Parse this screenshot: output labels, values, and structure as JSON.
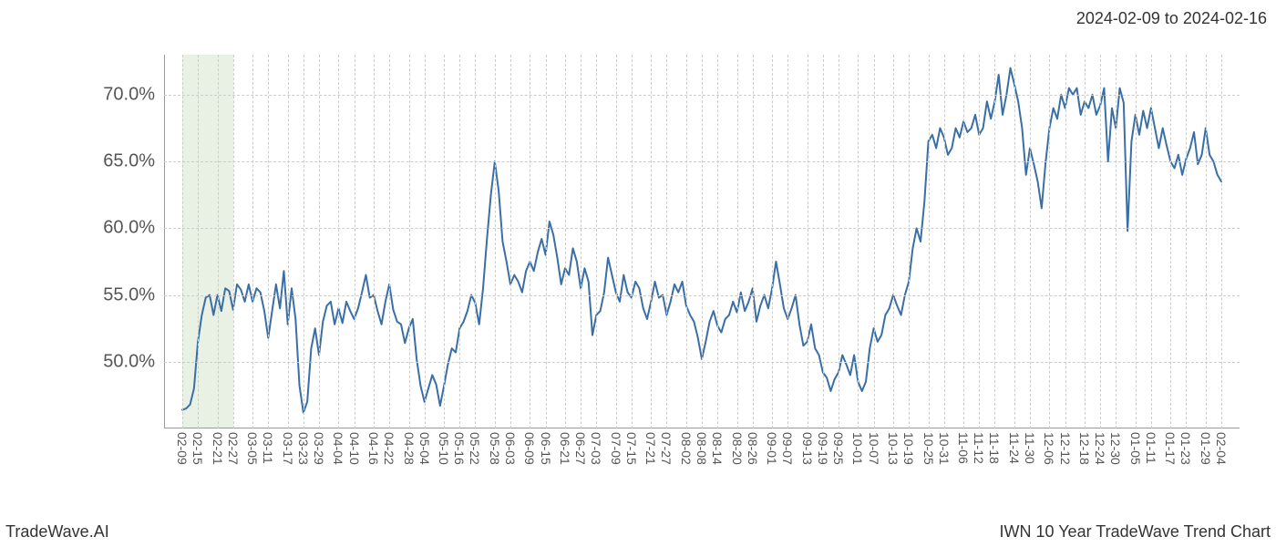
{
  "header": {
    "date_range": "2024-02-09 to 2024-02-16"
  },
  "footer": {
    "left": "TradeWave.AI",
    "right": "IWN 10 Year TradeWave Trend Chart"
  },
  "chart": {
    "type": "line",
    "line_color": "#3a6fa6",
    "line_width": 2,
    "background_color": "#ffffff",
    "grid_color": "#cccccc",
    "axis_color": "#999999",
    "text_color": "#555555",
    "tick_fontsize": 14,
    "ylabel_fontsize": 20,
    "shade_region": {
      "start_index": 0,
      "end_index": 3,
      "color": "#e0ead9"
    },
    "ylim": [
      45,
      73
    ],
    "yticks": [
      {
        "value": 50,
        "label": "50.0%"
      },
      {
        "value": 55,
        "label": "55.0%"
      },
      {
        "value": 60,
        "label": "60.0%"
      },
      {
        "value": 65,
        "label": "65.0%"
      },
      {
        "value": 70,
        "label": "70.0%"
      }
    ],
    "x_labels": [
      "02-09",
      "02-15",
      "02-21",
      "02-27",
      "03-05",
      "03-11",
      "03-17",
      "03-23",
      "03-29",
      "04-04",
      "04-10",
      "04-16",
      "04-22",
      "04-28",
      "05-04",
      "05-10",
      "05-16",
      "05-22",
      "05-28",
      "06-03",
      "06-09",
      "06-15",
      "06-21",
      "06-27",
      "07-03",
      "07-09",
      "07-15",
      "07-21",
      "07-27",
      "08-02",
      "08-08",
      "08-14",
      "08-20",
      "08-26",
      "09-01",
      "09-07",
      "09-13",
      "09-19",
      "09-25",
      "10-01",
      "10-07",
      "10-13",
      "10-19",
      "10-25",
      "10-31",
      "11-06",
      "11-12",
      "11-18",
      "11-24",
      "11-30",
      "12-06",
      "12-12",
      "12-18",
      "12-24",
      "12-30",
      "01-05",
      "01-11",
      "01-17",
      "01-23",
      "01-29",
      "02-04"
    ],
    "series": [
      46.4,
      46.5,
      46.8,
      48.0,
      51.5,
      53.5,
      54.8,
      55.0,
      53.5,
      55.0,
      53.8,
      55.5,
      55.3,
      53.9,
      55.8,
      55.4,
      54.5,
      55.8,
      54.5,
      55.5,
      55.2,
      53.8,
      51.8,
      53.8,
      55.8,
      54.0,
      56.8,
      52.8,
      55.5,
      53.2,
      48.2,
      46.2,
      47.0,
      51.0,
      52.5,
      50.5,
      53.0,
      54.2,
      54.5,
      52.8,
      54.0,
      52.9,
      54.5,
      53.8,
      53.2,
      54.0,
      55.2,
      56.5,
      54.8,
      55.0,
      53.8,
      52.8,
      54.5,
      55.8,
      53.9,
      53.0,
      52.8,
      51.4,
      52.5,
      53.2,
      50.2,
      48.2,
      47.0,
      48.0,
      49.0,
      48.3,
      46.7,
      48.2,
      49.8,
      51.0,
      50.7,
      52.5,
      53.0,
      53.8,
      55.0,
      54.4,
      52.8,
      55.5,
      59.2,
      62.5,
      65.0,
      62.8,
      59.0,
      57.5,
      55.8,
      56.5,
      56.0,
      55.2,
      56.8,
      57.5,
      56.8,
      58.2,
      59.2,
      58.0,
      60.5,
      59.5,
      57.8,
      55.8,
      57.0,
      56.5,
      58.5,
      57.5,
      55.5,
      57.0,
      56.0,
      52.0,
      53.5,
      53.8,
      55.2,
      57.8,
      56.5,
      55.2,
      54.5,
      56.5,
      55.2,
      54.8,
      56.0,
      55.5,
      54.0,
      53.2,
      54.5,
      56.0,
      54.8,
      55.0,
      53.5,
      54.5,
      55.8,
      55.2,
      56.0,
      54.2,
      53.5,
      53.0,
      51.8,
      50.2,
      51.5,
      53.0,
      53.8,
      52.7,
      52.2,
      53.2,
      53.5,
      54.5,
      53.7,
      55.2,
      53.8,
      54.5,
      55.5,
      53.0,
      54.2,
      55.0,
      54.0,
      55.5,
      57.5,
      55.8,
      54.0,
      53.2,
      54.0,
      55.0,
      52.8,
      51.2,
      51.5,
      52.8,
      51.0,
      50.5,
      49.2,
      48.8,
      47.8,
      48.7,
      49.2,
      50.5,
      49.8,
      49.0,
      50.5,
      48.5,
      47.8,
      48.5,
      51.0,
      52.5,
      51.5,
      52.0,
      53.5,
      54.0,
      55.0,
      54.2,
      53.5,
      55.0,
      56.0,
      58.5,
      60.0,
      59.0,
      62.0,
      66.5,
      67.0,
      66.0,
      67.5,
      66.8,
      65.5,
      66.0,
      67.5,
      66.8,
      68.0,
      67.2,
      67.5,
      68.5,
      67.0,
      67.5,
      69.5,
      68.2,
      69.5,
      71.5,
      68.5,
      70.0,
      72.0,
      70.8,
      69.5,
      67.5,
      64.0,
      66.0,
      64.8,
      63.5,
      61.5,
      64.9,
      67.5,
      69.0,
      68.2,
      70.0,
      69.0,
      70.5,
      70.0,
      70.5,
      68.5,
      69.5,
      69.0,
      70.0,
      68.5,
      69.2,
      70.5,
      65.0,
      69.0,
      67.5,
      70.5,
      69.4,
      59.8,
      66.5,
      68.5,
      67.0,
      68.8,
      67.5,
      69.0,
      67.5,
      66.0,
      67.5,
      66.2,
      65.0,
      64.5,
      65.5,
      64.0,
      65.2,
      66.0,
      67.2,
      64.8,
      65.5,
      67.5,
      65.5,
      65.0,
      64.0,
      63.5
    ]
  }
}
